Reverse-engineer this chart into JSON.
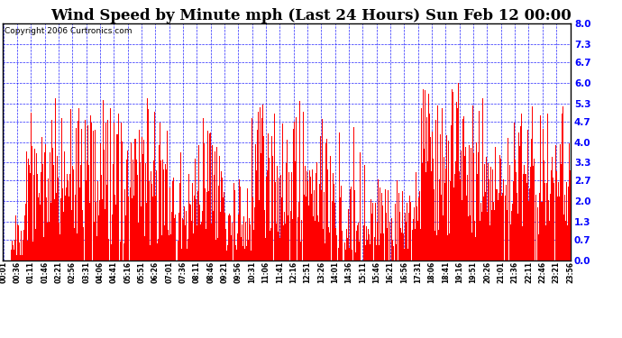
{
  "title": "Wind Speed by Minute mph (Last 24 Hours) Sun Feb 12 00:00",
  "copyright": "Copyright 2006 Curtronics.com",
  "yticks": [
    0.0,
    0.7,
    1.3,
    2.0,
    2.7,
    3.3,
    4.0,
    4.7,
    5.3,
    6.0,
    6.7,
    7.3,
    8.0
  ],
  "ylim": [
    0.0,
    8.0
  ],
  "bar_color": "#FF0000",
  "background_color": "#FFFFFF",
  "grid_color": "#0000FF",
  "border_color": "#000000",
  "title_fontsize": 12,
  "copyright_fontsize": 6.5,
  "ytick_fontsize": 7.5,
  "xtick_fontsize": 5.5,
  "n_minutes": 1440,
  "xtick_labels": [
    "00:01",
    "00:36",
    "01:11",
    "01:46",
    "02:21",
    "02:56",
    "03:31",
    "04:06",
    "04:41",
    "05:16",
    "05:51",
    "06:26",
    "07:01",
    "07:36",
    "08:11",
    "08:46",
    "09:21",
    "09:56",
    "10:31",
    "11:06",
    "11:41",
    "12:16",
    "12:51",
    "13:26",
    "14:01",
    "14:36",
    "15:11",
    "15:46",
    "16:21",
    "16:56",
    "17:31",
    "18:06",
    "18:41",
    "19:16",
    "19:51",
    "20:26",
    "21:01",
    "21:36",
    "22:11",
    "22:46",
    "23:21",
    "23:56"
  ],
  "seed": 99,
  "base_wind": 2.0,
  "spike_prob": 0.25
}
